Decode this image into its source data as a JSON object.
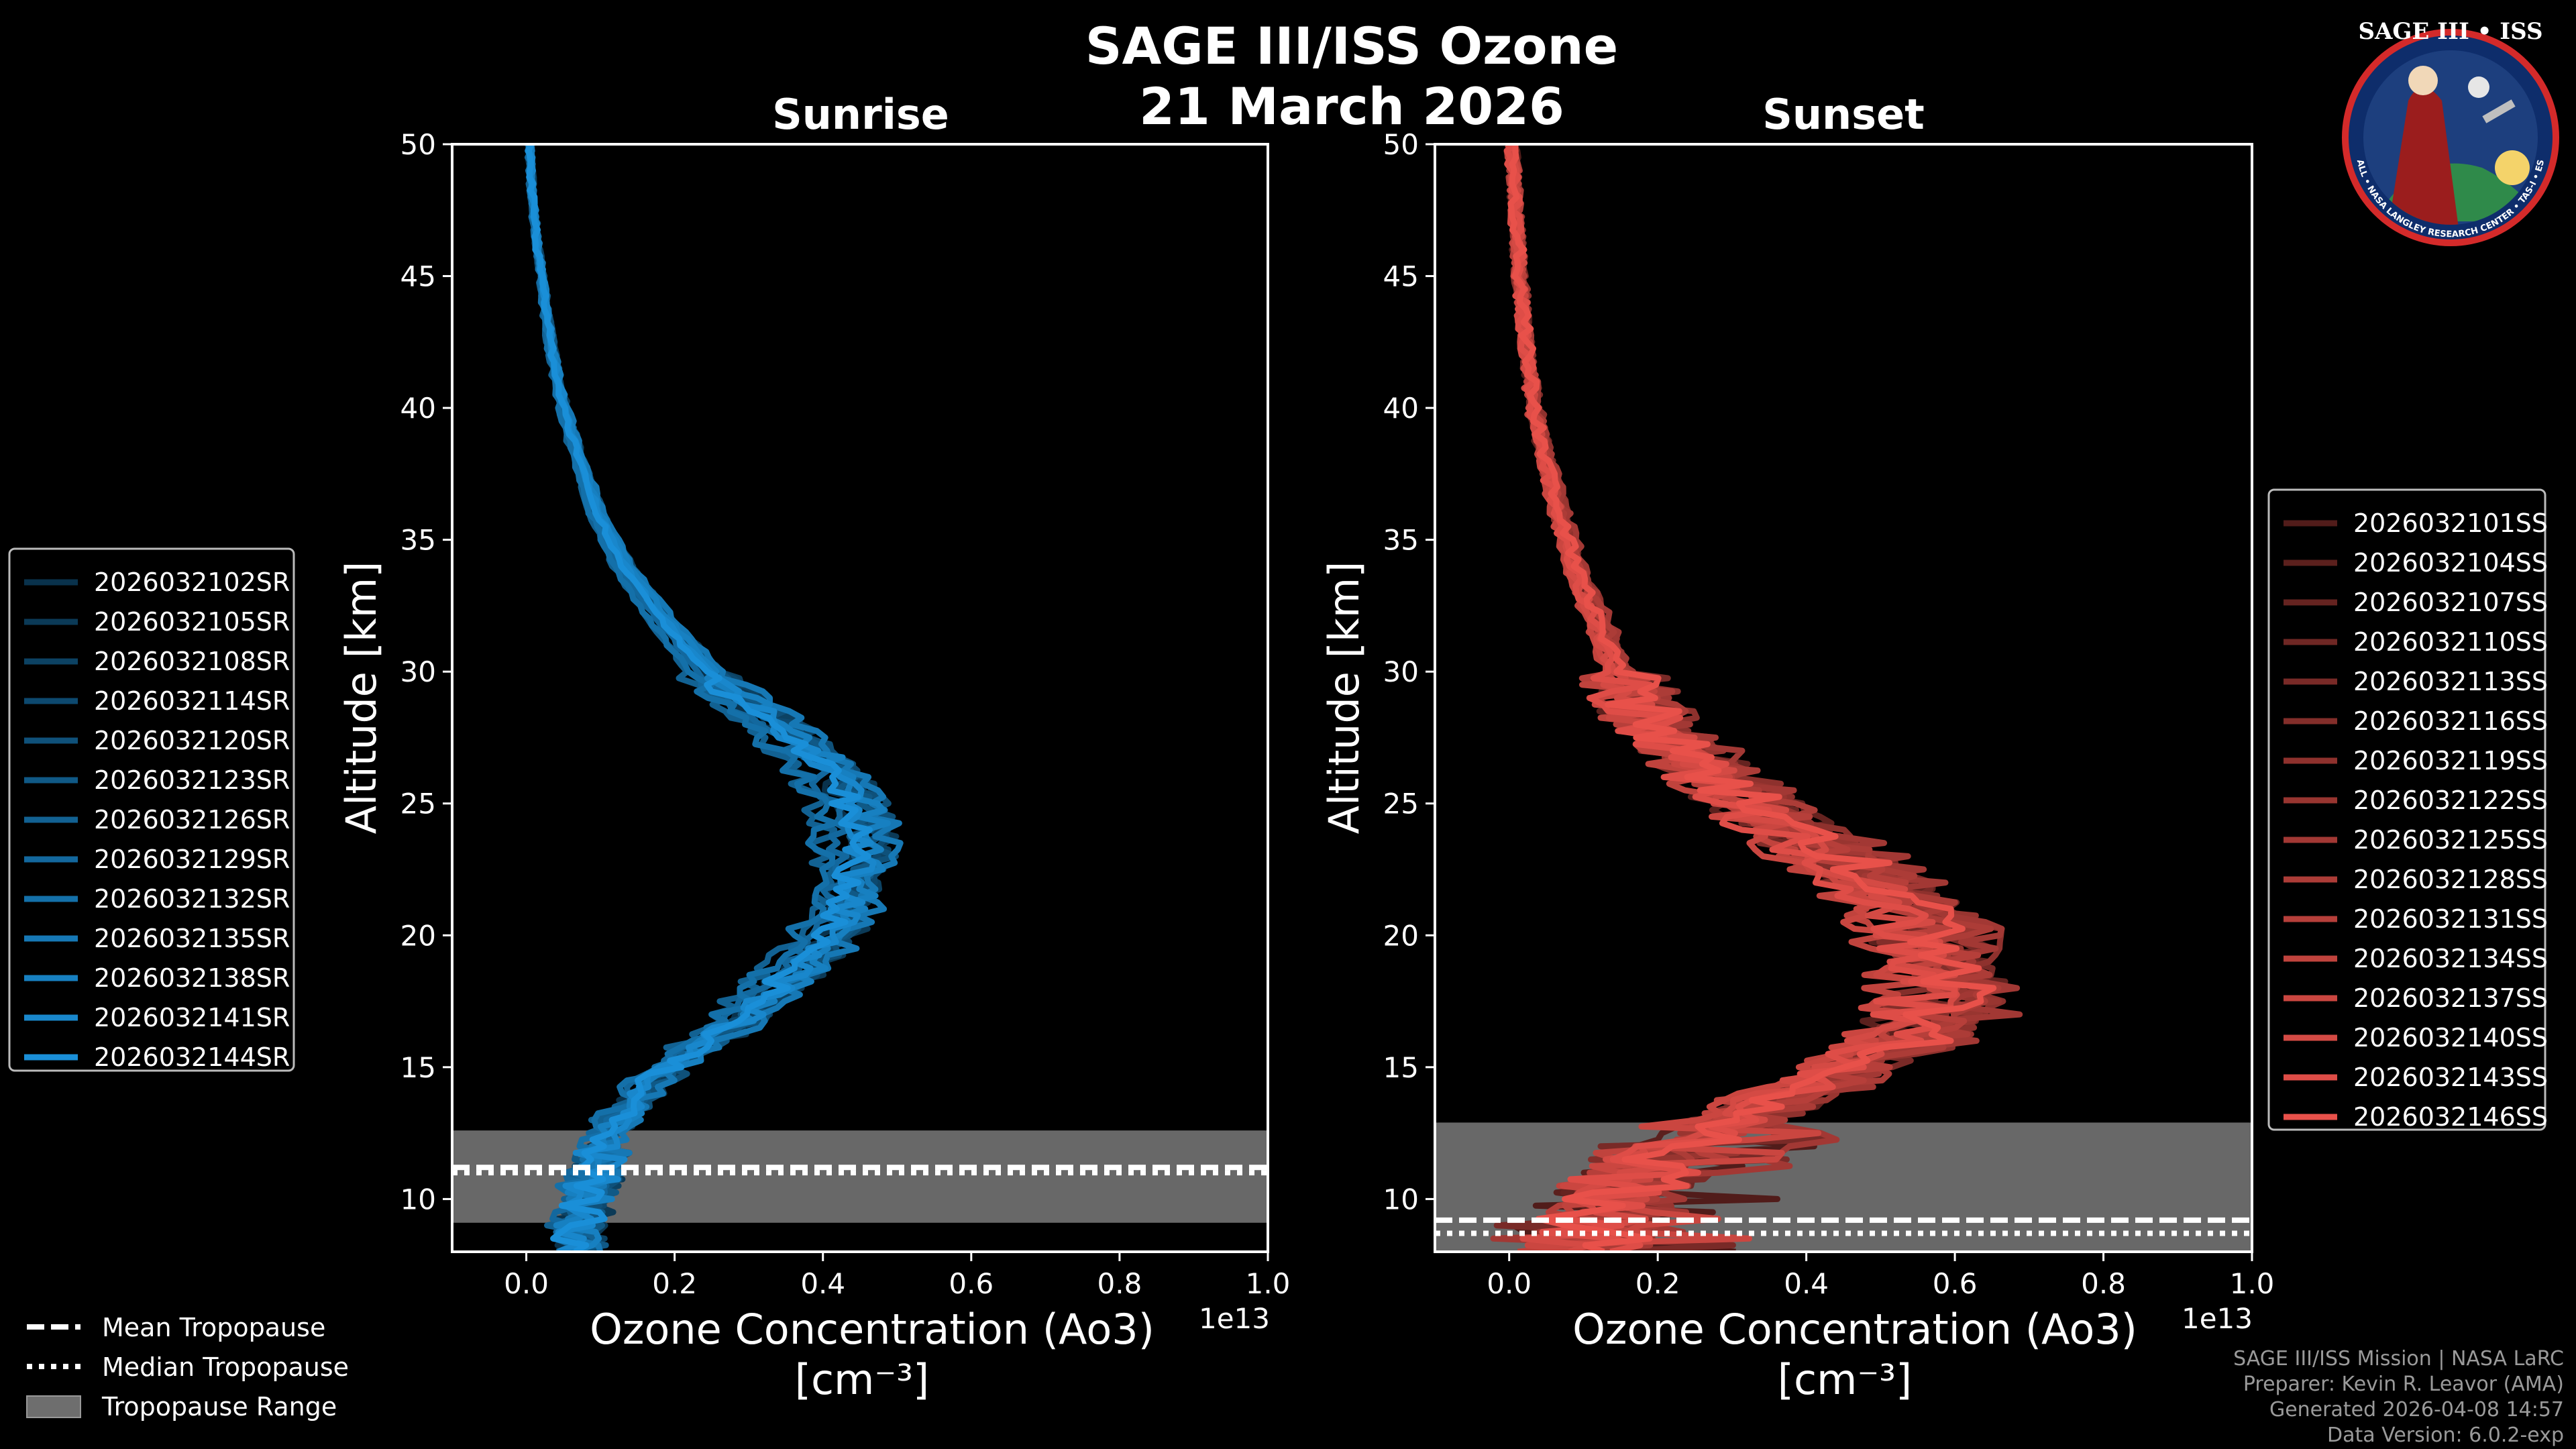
{
  "title_line1": "SAGE III/ISS Ozone",
  "title_line2": "21 March 2026",
  "colors": {
    "sunrise": "#1a8fd8",
    "sunset": "#e8514a",
    "tropo_band": "#6e6e6e"
  },
  "chart_data": [
    {
      "type": "line",
      "title": "Sunrise",
      "xlabel_line1": "Ozone Concentration (Ao3)",
      "xlabel_line2": "[cm⁻³]",
      "ylabel": "Altitude [km]",
      "x_scale_label": "1e13",
      "xlim": [
        -0.1,
        1.0
      ],
      "ylim": [
        8,
        50
      ],
      "xticks": [
        0.0,
        0.2,
        0.4,
        0.6,
        0.8,
        1.0
      ],
      "xtick_labels": [
        "0.0",
        "0.2",
        "0.4",
        "0.6",
        "0.8",
        "1.0"
      ],
      "yticks": [
        10,
        15,
        20,
        25,
        30,
        35,
        40,
        45,
        50
      ],
      "ytick_labels": [
        "10",
        "15",
        "20",
        "25",
        "30",
        "35",
        "40",
        "45",
        "50"
      ],
      "tropopause": {
        "mean": 11.2,
        "median": 11.0,
        "range": [
          9.1,
          12.6
        ]
      },
      "base_profile": {
        "altitude": [
          8,
          9,
          10,
          11,
          12,
          13,
          14,
          15,
          16,
          17,
          18,
          19,
          20,
          21,
          22,
          23,
          24,
          25,
          26,
          27,
          28,
          29,
          30,
          32,
          34,
          36,
          38,
          40,
          42,
          44,
          46,
          48,
          50
        ],
        "ozone": [
          0.07,
          0.07,
          0.08,
          0.09,
          0.1,
          0.12,
          0.15,
          0.19,
          0.24,
          0.29,
          0.33,
          0.37,
          0.4,
          0.42,
          0.43,
          0.44,
          0.44,
          0.43,
          0.41,
          0.37,
          0.33,
          0.28,
          0.24,
          0.18,
          0.13,
          0.095,
          0.07,
          0.05,
          0.035,
          0.025,
          0.015,
          0.008,
          0.004
        ]
      },
      "series": [
        {
          "name": "2026032102SR"
        },
        {
          "name": "2026032105SR"
        },
        {
          "name": "2026032108SR"
        },
        {
          "name": "2026032114SR"
        },
        {
          "name": "2026032120SR"
        },
        {
          "name": "2026032123SR"
        },
        {
          "name": "2026032126SR"
        },
        {
          "name": "2026032129SR"
        },
        {
          "name": "2026032132SR"
        },
        {
          "name": "2026032135SR"
        },
        {
          "name": "2026032138SR"
        },
        {
          "name": "2026032141SR"
        },
        {
          "name": "2026032144SR"
        }
      ]
    },
    {
      "type": "line",
      "title": "Sunset",
      "xlabel_line1": "Ozone Concentration (Ao3)",
      "xlabel_line2": "[cm⁻³]",
      "ylabel": "Altitude [km]",
      "x_scale_label": "1e13",
      "xlim": [
        -0.1,
        1.0
      ],
      "ylim": [
        8,
        50
      ],
      "xticks": [
        0.0,
        0.2,
        0.4,
        0.6,
        0.8,
        1.0
      ],
      "xtick_labels": [
        "0.0",
        "0.2",
        "0.4",
        "0.6",
        "0.8",
        "1.0"
      ],
      "yticks": [
        10,
        15,
        20,
        25,
        30,
        35,
        40,
        45,
        50
      ],
      "ytick_labels": [
        "10",
        "15",
        "20",
        "25",
        "30",
        "35",
        "40",
        "45",
        "50"
      ],
      "tropopause": {
        "mean": 9.2,
        "median": 8.7,
        "range": [
          8.0,
          12.9
        ]
      },
      "base_profile": {
        "altitude": [
          8,
          9,
          10,
          11,
          12,
          13,
          14,
          15,
          16,
          17,
          18,
          19,
          20,
          21,
          22,
          23,
          24,
          25,
          26,
          27,
          28,
          29,
          30,
          32,
          34,
          36,
          38,
          40,
          42,
          44,
          46,
          48,
          50
        ],
        "ozone": [
          0.1,
          0.12,
          0.14,
          0.18,
          0.24,
          0.31,
          0.39,
          0.47,
          0.54,
          0.58,
          0.6,
          0.6,
          0.58,
          0.55,
          0.5,
          0.44,
          0.38,
          0.33,
          0.28,
          0.24,
          0.2,
          0.17,
          0.15,
          0.12,
          0.09,
          0.07,
          0.05,
          0.035,
          0.025,
          0.018,
          0.012,
          0.008,
          0.004
        ]
      },
      "series": [
        {
          "name": "2026032101SS"
        },
        {
          "name": "2026032104SS"
        },
        {
          "name": "2026032107SS"
        },
        {
          "name": "2026032110SS"
        },
        {
          "name": "2026032113SS"
        },
        {
          "name": "2026032116SS"
        },
        {
          "name": "2026032119SS"
        },
        {
          "name": "2026032122SS"
        },
        {
          "name": "2026032125SS"
        },
        {
          "name": "2026032128SS"
        },
        {
          "name": "2026032131SS"
        },
        {
          "name": "2026032134SS"
        },
        {
          "name": "2026032137SS"
        },
        {
          "name": "2026032140SS"
        },
        {
          "name": "2026032143SS"
        },
        {
          "name": "2026032146SS"
        }
      ]
    }
  ],
  "common_legend": {
    "mean": "Mean Tropopause",
    "median": "Median Tropopause",
    "range": "Tropopause Range"
  },
  "footer": {
    "line1": "SAGE III/ISS Mission | NASA LaRC",
    "line2": "Preparer: Kevin R. Leavor (AMA)",
    "line3": "Generated 2026-04-08 14:57",
    "line4": "Data Version: 6.0.2-exp"
  },
  "badge": {
    "title": "SAGE III • ISS",
    "ring": "BALL • NASA LANGLEY RESEARCH CENTER • TAS-I • ESA"
  }
}
